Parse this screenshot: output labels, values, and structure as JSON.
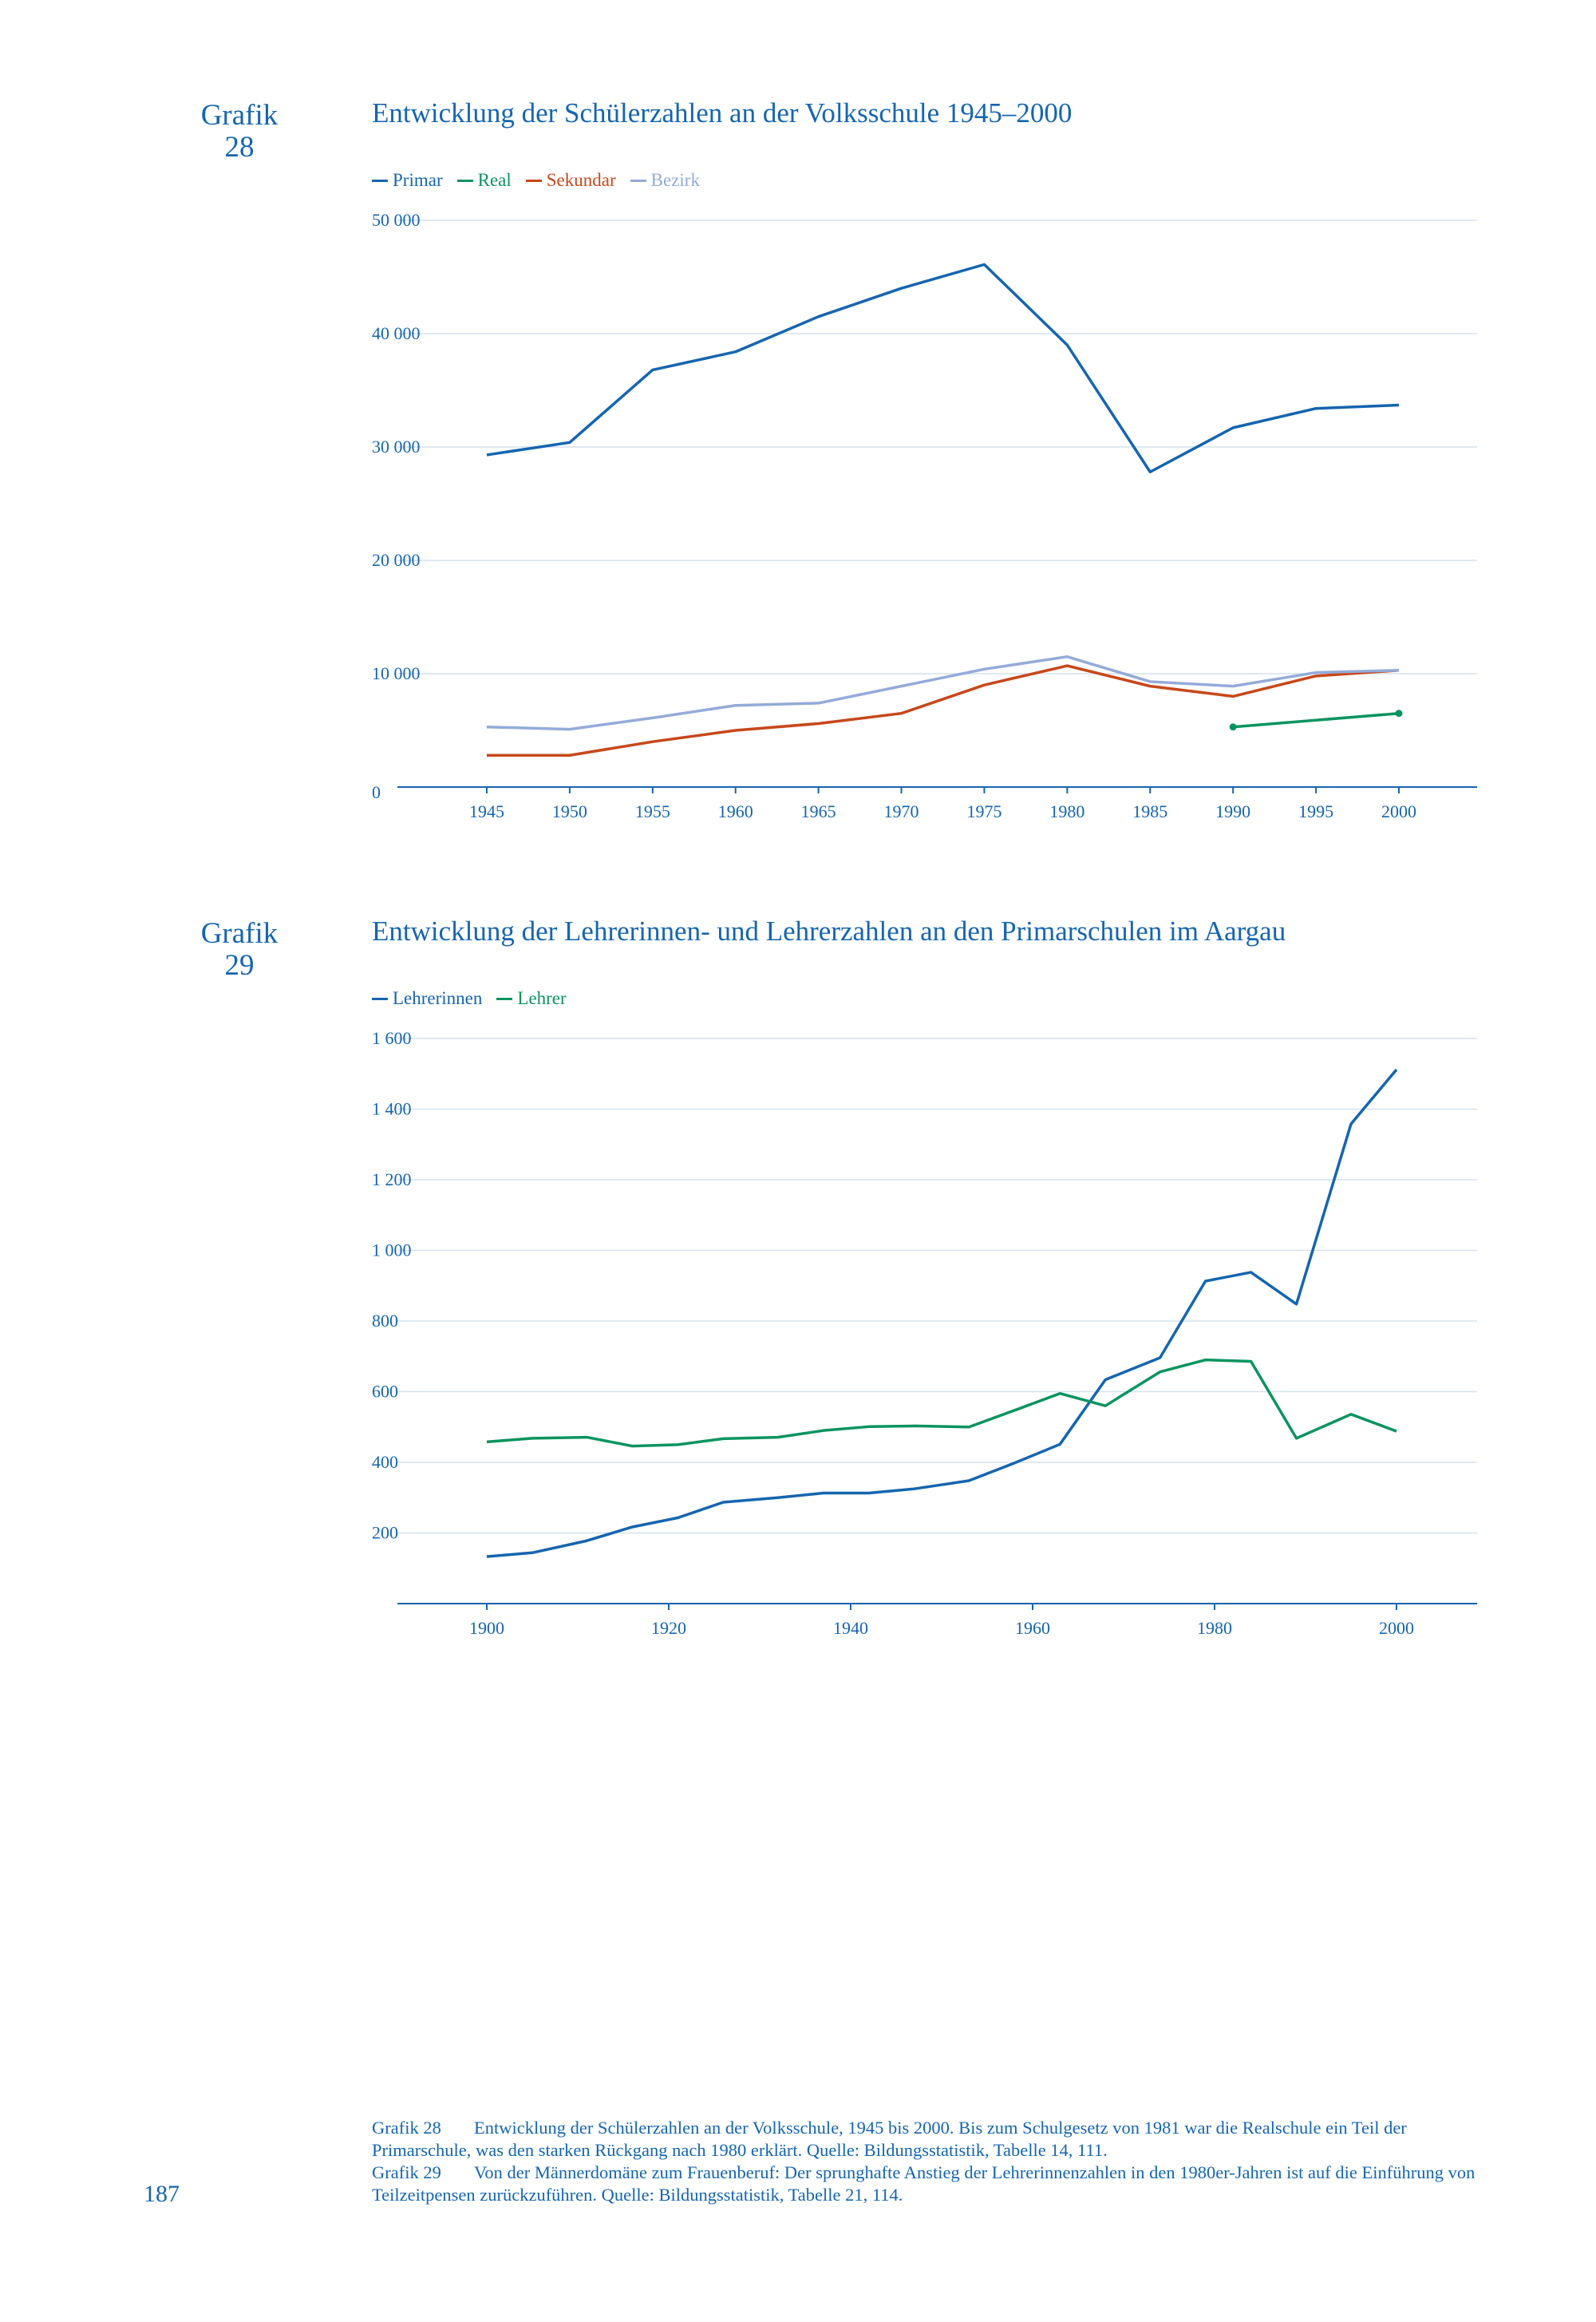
{
  "chart_data": [
    {
      "type": "line",
      "label": "Grafik",
      "number": "28",
      "title": "Entwicklung der Schülerzahlen an der Volksschule 1945–2000",
      "x": [
        1945,
        1950,
        1955,
        1960,
        1965,
        1970,
        1975,
        1980,
        1985,
        1990,
        1995,
        2000
      ],
      "xlim": [
        1940,
        2005
      ],
      "ylim": [
        0,
        50000
      ],
      "y_ticks": [
        0,
        10000,
        20000,
        30000,
        40000,
        50000
      ],
      "y_tick_labels": [
        "0",
        "10 000",
        "20 000",
        "30 000",
        "40 000",
        "50 000"
      ],
      "x_tick_labels": [
        "1945",
        "1950",
        "1955",
        "1960",
        "1965",
        "1970",
        "1975",
        "1980",
        "1985",
        "1990",
        "1995",
        "2000"
      ],
      "grid": true,
      "legend_position": "top-left",
      "series": [
        {
          "name": "Primar",
          "color": "#1565b0",
          "values": [
            29300,
            30400,
            36800,
            38400,
            41500,
            44000,
            46100,
            39000,
            27800,
            31700,
            33400,
            33700
          ]
        },
        {
          "name": "Real",
          "color": "#0b9460",
          "values": [
            null,
            null,
            null,
            null,
            null,
            null,
            null,
            null,
            null,
            5300,
            null,
            6500
          ],
          "markers": true
        },
        {
          "name": "Sekundar",
          "color": "#c8471a",
          "values": [
            2800,
            2800,
            4000,
            5000,
            5600,
            6500,
            9000,
            10700,
            8900,
            8000,
            9800,
            10300
          ]
        },
        {
          "name": "Bezirk",
          "color": "#94abd9",
          "values": [
            5300,
            5100,
            6100,
            7200,
            7400,
            8900,
            10400,
            11500,
            9300,
            8900,
            10100,
            10300
          ]
        }
      ]
    },
    {
      "type": "line",
      "label": "Grafik",
      "number": "29",
      "title": "Entwicklung der Lehrerinnen- und Lehrerzahlen an den Primarschulen im Aargau",
      "x": [
        1900,
        1905,
        1911,
        1916,
        1921,
        1926,
        1932,
        1937,
        1942,
        1947,
        1953,
        1958,
        1963,
        1968,
        1974,
        1979,
        1984,
        1989,
        1995,
        2000
      ],
      "xlim": [
        1890,
        2009
      ],
      "ylim": [
        0,
        1600
      ],
      "y_ticks": [
        200,
        400,
        600,
        800,
        1000,
        1200,
        1400,
        1600
      ],
      "y_tick_labels": [
        "200",
        "400",
        "600",
        "800",
        "1 000",
        "1 200",
        "1 400",
        "1 600"
      ],
      "x_ticks": [
        1900,
        1920,
        1940,
        1960,
        1980,
        2000
      ],
      "x_tick_labels": [
        "1900",
        "1920",
        "1940",
        "1960",
        "1980",
        "2000"
      ],
      "grid": true,
      "legend_position": "top-left",
      "series": [
        {
          "name": "Lehrerinnen",
          "color": "#1565b0",
          "values": [
            133,
            144,
            178,
            217,
            243,
            287,
            300,
            313,
            313,
            325,
            348,
            398,
            451,
            634,
            696,
            913,
            938,
            848,
            1358,
            1512
          ]
        },
        {
          "name": "Lehrer",
          "color": "#0b9460",
          "values": [
            458,
            468,
            471,
            446,
            450,
            467,
            471,
            490,
            501,
            503,
            500,
            547,
            595,
            560,
            656,
            690,
            686,
            468,
            536,
            488
          ]
        }
      ]
    }
  ],
  "captions": [
    {
      "label": "Grafik 28",
      "text": "Entwicklung der Schülerzahlen an der Volksschule, 1945 bis 2000. Bis zum Schulgesetz von 1981 war die Realschule ein Teil der Primarschule, was den starken Rückgang nach 1980 erklärt. Quelle: Bildungsstatistik, Tabelle 14, 111."
    },
    {
      "label": "Grafik 29",
      "text": "Von der Männerdomäne zum Frauenberuf: Der sprunghafte Anstieg der Lehrerinnenzahlen in den 1980er-Jahren ist auf die Einführung von Teilzeitpensen zurückzuführen. Quelle: Bildungsstatistik, Tabelle 21, 114."
    }
  ],
  "page_number": "187",
  "colors": {
    "text": "#1565b0",
    "grid": "#d5e2ee",
    "axis": "#1565b0"
  }
}
